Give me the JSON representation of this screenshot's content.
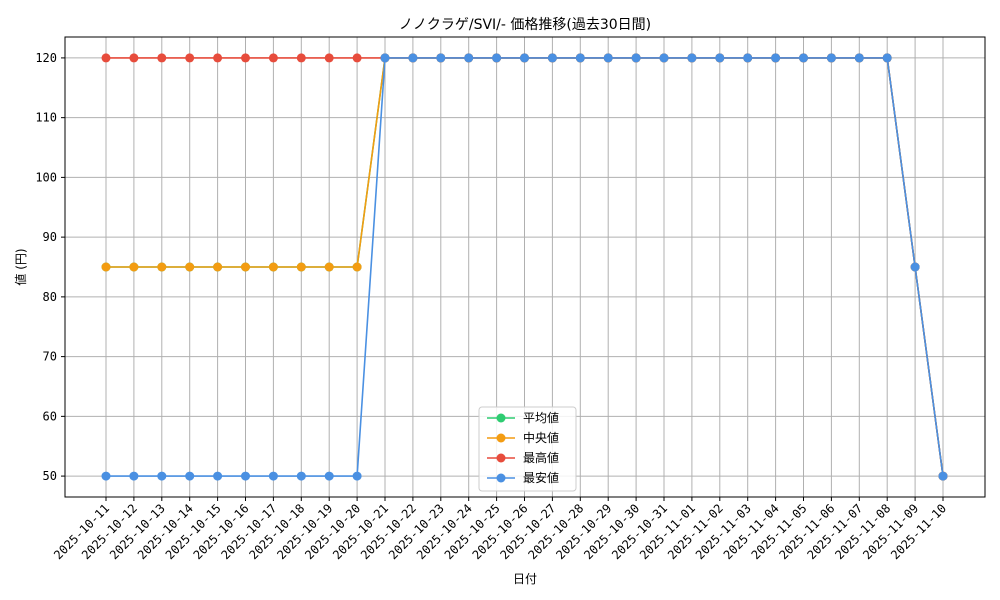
{
  "chart_data": {
    "type": "line",
    "title": "ノノクラゲ/SVI/- 価格推移(過去30日間)",
    "xlabel": "日付",
    "ylabel": "値 (円)",
    "categories": [
      "2025-10-11",
      "2025-10-12",
      "2025-10-13",
      "2025-10-14",
      "2025-10-15",
      "2025-10-16",
      "2025-10-17",
      "2025-10-18",
      "2025-10-19",
      "2025-10-20",
      "2025-10-21",
      "2025-10-22",
      "2025-10-23",
      "2025-10-24",
      "2025-10-25",
      "2025-10-26",
      "2025-10-27",
      "2025-10-28",
      "2025-10-29",
      "2025-10-30",
      "2025-10-31",
      "2025-11-01",
      "2025-11-02",
      "2025-11-03",
      "2025-11-04",
      "2025-11-05",
      "2025-11-06",
      "2025-11-07",
      "2025-11-08",
      "2025-11-09",
      "2025-11-10"
    ],
    "yticks": [
      50,
      60,
      70,
      80,
      90,
      100,
      110,
      120
    ],
    "ylim": [
      46.5,
      123.5
    ],
    "grid": true,
    "legend_position": "bottom-center",
    "series": [
      {
        "name": "平均値",
        "color": "#2ecc71",
        "values": [
          85,
          85,
          85,
          85,
          85,
          85,
          85,
          85,
          85,
          85,
          120,
          120,
          120,
          120,
          120,
          120,
          120,
          120,
          120,
          120,
          120,
          120,
          120,
          120,
          120,
          120,
          120,
          120,
          120,
          85,
          50
        ]
      },
      {
        "name": "中央値",
        "color": "#f39c12",
        "values": [
          85,
          85,
          85,
          85,
          85,
          85,
          85,
          85,
          85,
          85,
          120,
          120,
          120,
          120,
          120,
          120,
          120,
          120,
          120,
          120,
          120,
          120,
          120,
          120,
          120,
          120,
          120,
          120,
          120,
          85,
          50
        ]
      },
      {
        "name": "最高値",
        "color": "#e74c3c",
        "values": [
          120,
          120,
          120,
          120,
          120,
          120,
          120,
          120,
          120,
          120,
          120,
          120,
          120,
          120,
          120,
          120,
          120,
          120,
          120,
          120,
          120,
          120,
          120,
          120,
          120,
          120,
          120,
          120,
          120,
          85,
          50
        ]
      },
      {
        "name": "最安値",
        "color": "#4a90e2",
        "values": [
          50,
          50,
          50,
          50,
          50,
          50,
          50,
          50,
          50,
          50,
          120,
          120,
          120,
          120,
          120,
          120,
          120,
          120,
          120,
          120,
          120,
          120,
          120,
          120,
          120,
          120,
          120,
          120,
          120,
          85,
          50
        ]
      }
    ]
  }
}
